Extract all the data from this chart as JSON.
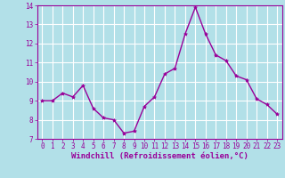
{
  "x": [
    0,
    1,
    2,
    3,
    4,
    5,
    6,
    7,
    8,
    9,
    10,
    11,
    12,
    13,
    14,
    15,
    16,
    17,
    18,
    19,
    20,
    21,
    22,
    23
  ],
  "y": [
    9.0,
    9.0,
    9.4,
    9.2,
    9.8,
    8.6,
    8.1,
    8.0,
    7.3,
    7.4,
    8.7,
    9.2,
    10.4,
    10.7,
    12.5,
    13.9,
    12.5,
    11.4,
    11.1,
    10.3,
    10.1,
    9.1,
    8.8,
    8.3
  ],
  "line_color": "#990099",
  "marker": "*",
  "marker_size": 3,
  "bg_color": "#b2e0e8",
  "grid_color": "#ffffff",
  "xlabel": "Windchill (Refroidissement éolien,°C)",
  "xlabel_color": "#990099",
  "tick_color": "#990099",
  "spine_color": "#990099",
  "ylim": [
    7,
    14
  ],
  "xlim": [
    -0.5,
    23.5
  ],
  "yticks": [
    7,
    8,
    9,
    10,
    11,
    12,
    13,
    14
  ],
  "xticks": [
    0,
    1,
    2,
    3,
    4,
    5,
    6,
    7,
    8,
    9,
    10,
    11,
    12,
    13,
    14,
    15,
    16,
    17,
    18,
    19,
    20,
    21,
    22,
    23
  ],
  "tick_fontsize": 5.5,
  "xlabel_fontsize": 6.5,
  "linewidth": 1.0
}
